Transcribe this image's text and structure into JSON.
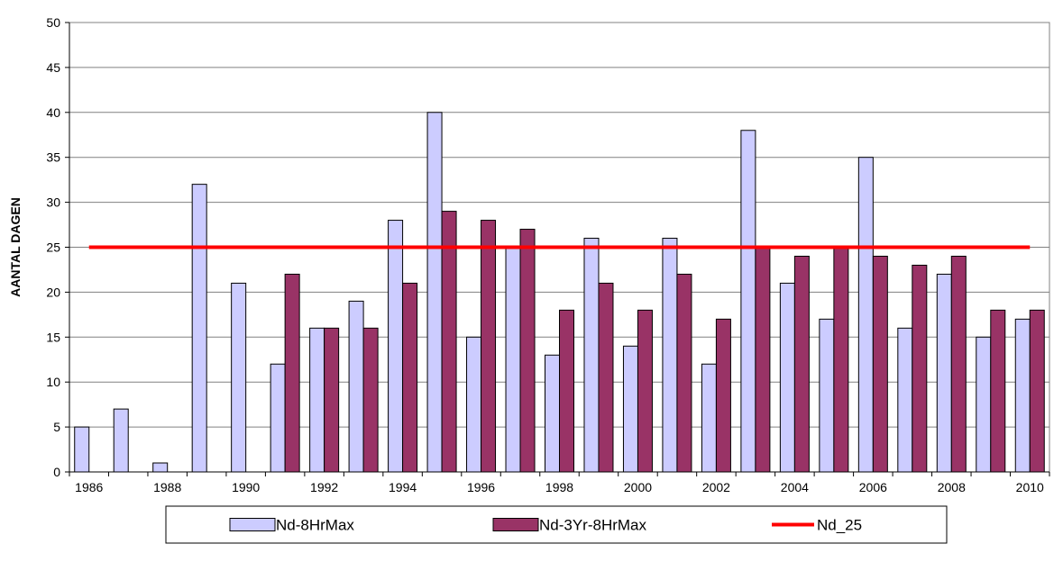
{
  "chart_data": {
    "type": "bar",
    "title": "",
    "xlabel": "",
    "ylabel": "AANTAL DAGEN",
    "ylim": [
      0,
      50
    ],
    "yticks": [
      0,
      5,
      10,
      15,
      20,
      25,
      30,
      35,
      40,
      45,
      50
    ],
    "categories": [
      1986,
      1987,
      1988,
      1989,
      1990,
      1991,
      1992,
      1993,
      1994,
      1995,
      1996,
      1997,
      1998,
      1999,
      2000,
      2001,
      2002,
      2003,
      2004,
      2005,
      2006,
      2007,
      2008,
      2009,
      2010
    ],
    "xtick_labels": [
      "1986",
      "1988",
      "1990",
      "1992",
      "1994",
      "1996",
      "1998",
      "2000",
      "2002",
      "2004",
      "2006",
      "2008",
      "2010"
    ],
    "series": [
      {
        "name": "Nd-8HrMax",
        "color": "#ccccff",
        "values": [
          5,
          7,
          1,
          32,
          21,
          12,
          16,
          19,
          28,
          40,
          15,
          25,
          13,
          26,
          14,
          26,
          12,
          38,
          21,
          17,
          35,
          16,
          22,
          15,
          17
        ]
      },
      {
        "name": "Nd-3Yr-8HrMax",
        "color": "#993366",
        "values": [
          null,
          null,
          null,
          null,
          null,
          22,
          16,
          16,
          21,
          29,
          28,
          27,
          18,
          21,
          18,
          22,
          17,
          25,
          24,
          25,
          24,
          23,
          24,
          18,
          18
        ]
      }
    ],
    "reference_line": {
      "name": "Nd_25",
      "value": 25,
      "color": "#ff0000"
    },
    "grid": true,
    "legend": "bottom"
  }
}
